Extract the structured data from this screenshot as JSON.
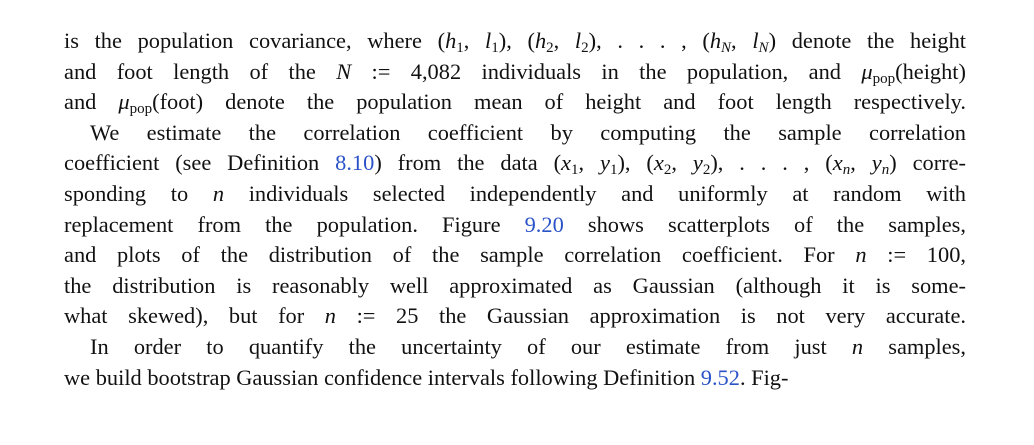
{
  "lines": [
    {
      "indent": false,
      "segments": [
        {
          "t": "is the population covariance, where "
        },
        {
          "t": "(",
          "math": true,
          "upright": true
        },
        {
          "t": "h",
          "math": true
        },
        {
          "t": "1",
          "sub": true
        },
        {
          "t": ", ",
          "math": true,
          "upright": true
        },
        {
          "t": "l",
          "math": true
        },
        {
          "t": "1",
          "sub": true
        },
        {
          "t": "), (",
          "math": true,
          "upright": true
        },
        {
          "t": "h",
          "math": true
        },
        {
          "t": "2",
          "sub": true
        },
        {
          "t": ", ",
          "math": true,
          "upright": true
        },
        {
          "t": "l",
          "math": true
        },
        {
          "t": "2",
          "sub": true
        },
        {
          "t": "), . . . , (",
          "math": true,
          "upright": true
        },
        {
          "t": "h",
          "math": true
        },
        {
          "t": "N",
          "sub": true,
          "italic": true
        },
        {
          "t": ", ",
          "math": true,
          "upright": true
        },
        {
          "t": "l",
          "math": true
        },
        {
          "t": "N",
          "sub": true,
          "italic": true
        },
        {
          "t": ")",
          "math": true,
          "upright": true
        },
        {
          "t": " denote the height"
        }
      ]
    },
    {
      "indent": false,
      "segments": [
        {
          "t": "and foot length of the "
        },
        {
          "t": "N",
          "math": true
        },
        {
          "t": " := 4,082 individuals in the population, and "
        },
        {
          "t": "μ",
          "math": true
        },
        {
          "t": "pop",
          "sub": true
        },
        {
          "t": "(height)"
        }
      ]
    },
    {
      "indent": false,
      "segments": [
        {
          "t": "and "
        },
        {
          "t": "μ",
          "math": true
        },
        {
          "t": "pop",
          "sub": true
        },
        {
          "t": "(foot) denote the population mean of height and foot length respectively."
        }
      ]
    },
    {
      "indent": true,
      "segments": [
        {
          "t": "We estimate the correlation coefficient by computing the sample correlation"
        }
      ]
    },
    {
      "indent": false,
      "segments": [
        {
          "t": "coefficient (see Definition "
        },
        {
          "t": "8.10",
          "ref": true
        },
        {
          "t": ") from the data "
        },
        {
          "t": "(",
          "math": true,
          "upright": true
        },
        {
          "t": "x",
          "math": true
        },
        {
          "t": "1",
          "sub": true
        },
        {
          "t": ", ",
          "math": true,
          "upright": true
        },
        {
          "t": "y",
          "math": true
        },
        {
          "t": "1",
          "sub": true
        },
        {
          "t": "), (",
          "math": true,
          "upright": true
        },
        {
          "t": "x",
          "math": true
        },
        {
          "t": "2",
          "sub": true
        },
        {
          "t": ", ",
          "math": true,
          "upright": true
        },
        {
          "t": "y",
          "math": true
        },
        {
          "t": "2",
          "sub": true
        },
        {
          "t": "), . . . , (",
          "math": true,
          "upright": true
        },
        {
          "t": "x",
          "math": true
        },
        {
          "t": "n",
          "sub": true,
          "italic": true
        },
        {
          "t": ", ",
          "math": true,
          "upright": true
        },
        {
          "t": "y",
          "math": true
        },
        {
          "t": "n",
          "sub": true,
          "italic": true
        },
        {
          "t": ")",
          "math": true,
          "upright": true
        },
        {
          "t": " corre-"
        }
      ]
    },
    {
      "indent": false,
      "segments": [
        {
          "t": "sponding to "
        },
        {
          "t": "n",
          "math": true
        },
        {
          "t": " individuals selected independently and uniformly at random with"
        }
      ]
    },
    {
      "indent": false,
      "segments": [
        {
          "t": "replacement from the population. Figure "
        },
        {
          "t": "9.20",
          "ref": true
        },
        {
          "t": " shows scatterplots of the samples,"
        }
      ]
    },
    {
      "indent": false,
      "segments": [
        {
          "t": "and plots of the distribution of the sample correlation coefficient. For "
        },
        {
          "t": "n",
          "math": true
        },
        {
          "t": " := 100,"
        }
      ]
    },
    {
      "indent": false,
      "segments": [
        {
          "t": "the distribution is reasonably well approximated as Gaussian (although it is some-"
        }
      ]
    },
    {
      "indent": false,
      "segments": [
        {
          "t": "what skewed), but for "
        },
        {
          "t": "n",
          "math": true
        },
        {
          "t": " := 25 the Gaussian approximation is not very accurate."
        }
      ]
    },
    {
      "indent": true,
      "segments": [
        {
          "t": "In order to quantify the uncertainty of our estimate from just "
        },
        {
          "t": "n",
          "math": true
        },
        {
          "t": " samples,"
        }
      ]
    },
    {
      "indent": false,
      "segments": [
        {
          "t": "we build bootstrap Gaussian confidence intervals following Definition "
        },
        {
          "t": "9.52",
          "ref": true
        },
        {
          "t": ". Fig-"
        }
      ]
    }
  ]
}
